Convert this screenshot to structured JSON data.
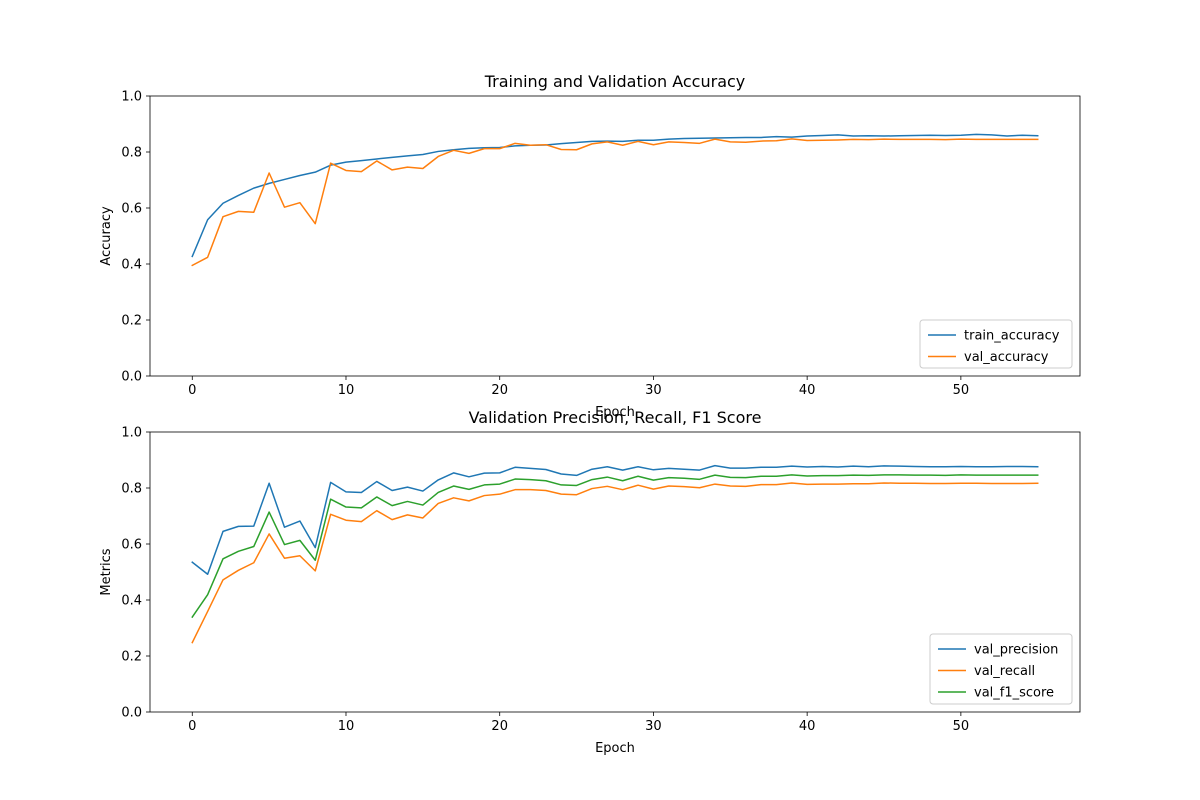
{
  "chart_data": [
    {
      "type": "line",
      "title": "Training and Validation Accuracy",
      "xlabel": "Epoch",
      "ylabel": "Accuracy",
      "xlim": [
        -2.75,
        57.75
      ],
      "ylim": [
        0,
        1
      ],
      "xticks": [
        0,
        10,
        20,
        30,
        40,
        50
      ],
      "yticks": [
        0.0,
        0.2,
        0.4,
        0.6,
        0.8,
        1.0
      ],
      "xtick_labels": [
        "0",
        "10",
        "20",
        "30",
        "40",
        "50"
      ],
      "ytick_labels": [
        "0.0",
        "0.2",
        "0.4",
        "0.6",
        "0.8",
        "1.0"
      ],
      "grid": false,
      "legend_position": "lower-right",
      "series": [
        {
          "name": "train_accuracy",
          "color": "#1f77b4",
          "values": [
            0.427,
            0.558,
            0.617,
            0.645,
            0.671,
            0.688,
            0.702,
            0.716,
            0.728,
            0.753,
            0.764,
            0.769,
            0.775,
            0.781,
            0.786,
            0.791,
            0.802,
            0.808,
            0.813,
            0.815,
            0.816,
            0.822,
            0.824,
            0.825,
            0.83,
            0.834,
            0.838,
            0.839,
            0.838,
            0.842,
            0.842,
            0.846,
            0.848,
            0.849,
            0.85,
            0.851,
            0.852,
            0.852,
            0.855,
            0.853,
            0.857,
            0.859,
            0.861,
            0.857,
            0.858,
            0.857,
            0.858,
            0.859,
            0.86,
            0.859,
            0.86,
            0.863,
            0.861,
            0.857,
            0.86,
            0.858
          ]
        },
        {
          "name": "val_accuracy",
          "color": "#ff7f0e",
          "values": [
            0.395,
            0.424,
            0.569,
            0.588,
            0.585,
            0.725,
            0.603,
            0.619,
            0.544,
            0.76,
            0.734,
            0.73,
            0.768,
            0.736,
            0.746,
            0.741,
            0.784,
            0.806,
            0.795,
            0.812,
            0.812,
            0.831,
            0.824,
            0.826,
            0.809,
            0.808,
            0.829,
            0.836,
            0.824,
            0.838,
            0.826,
            0.836,
            0.834,
            0.831,
            0.846,
            0.836,
            0.835,
            0.839,
            0.84,
            0.847,
            0.841,
            0.842,
            0.843,
            0.845,
            0.844,
            0.846,
            0.845,
            0.845,
            0.845,
            0.844,
            0.846,
            0.845,
            0.845,
            0.845,
            0.845,
            0.845
          ]
        }
      ]
    },
    {
      "type": "line",
      "title": "Validation Precision, Recall, F1 Score",
      "xlabel": "Epoch",
      "ylabel": "Metrics",
      "xlim": [
        -2.75,
        57.75
      ],
      "ylim": [
        0,
        1
      ],
      "xticks": [
        0,
        10,
        20,
        30,
        40,
        50
      ],
      "yticks": [
        0.0,
        0.2,
        0.4,
        0.6,
        0.8,
        1.0
      ],
      "xtick_labels": [
        "0",
        "10",
        "20",
        "30",
        "40",
        "50"
      ],
      "ytick_labels": [
        "0.0",
        "0.2",
        "0.4",
        "0.6",
        "0.8",
        "1.0"
      ],
      "grid": false,
      "legend_position": "lower-right",
      "series": [
        {
          "name": "val_precision",
          "color": "#1f77b4",
          "values": [
            0.535,
            0.492,
            0.645,
            0.663,
            0.664,
            0.817,
            0.66,
            0.682,
            0.587,
            0.82,
            0.786,
            0.784,
            0.823,
            0.791,
            0.803,
            0.789,
            0.829,
            0.854,
            0.84,
            0.853,
            0.854,
            0.874,
            0.87,
            0.866,
            0.85,
            0.845,
            0.867,
            0.876,
            0.864,
            0.876,
            0.865,
            0.87,
            0.867,
            0.864,
            0.88,
            0.871,
            0.871,
            0.874,
            0.874,
            0.878,
            0.875,
            0.877,
            0.875,
            0.878,
            0.876,
            0.879,
            0.878,
            0.877,
            0.876,
            0.876,
            0.877,
            0.876,
            0.876,
            0.877,
            0.877,
            0.876
          ]
        },
        {
          "name": "val_recall",
          "color": "#ff7f0e",
          "values": [
            0.248,
            0.359,
            0.472,
            0.506,
            0.533,
            0.636,
            0.549,
            0.558,
            0.504,
            0.706,
            0.685,
            0.68,
            0.719,
            0.687,
            0.704,
            0.693,
            0.745,
            0.765,
            0.754,
            0.773,
            0.778,
            0.794,
            0.794,
            0.791,
            0.778,
            0.776,
            0.798,
            0.806,
            0.794,
            0.81,
            0.796,
            0.807,
            0.805,
            0.801,
            0.814,
            0.807,
            0.806,
            0.812,
            0.812,
            0.818,
            0.813,
            0.814,
            0.814,
            0.815,
            0.815,
            0.818,
            0.817,
            0.817,
            0.816,
            0.816,
            0.817,
            0.817,
            0.816,
            0.816,
            0.816,
            0.817
          ]
        },
        {
          "name": "val_f1_score",
          "color": "#2ca02c",
          "values": [
            0.339,
            0.419,
            0.547,
            0.574,
            0.591,
            0.714,
            0.598,
            0.613,
            0.542,
            0.76,
            0.732,
            0.729,
            0.768,
            0.737,
            0.752,
            0.739,
            0.784,
            0.807,
            0.795,
            0.811,
            0.814,
            0.832,
            0.83,
            0.826,
            0.811,
            0.809,
            0.83,
            0.839,
            0.826,
            0.842,
            0.828,
            0.837,
            0.835,
            0.831,
            0.846,
            0.838,
            0.837,
            0.842,
            0.842,
            0.847,
            0.843,
            0.844,
            0.844,
            0.846,
            0.845,
            0.847,
            0.847,
            0.846,
            0.846,
            0.845,
            0.847,
            0.846,
            0.846,
            0.846,
            0.846,
            0.846
          ]
        }
      ]
    }
  ]
}
